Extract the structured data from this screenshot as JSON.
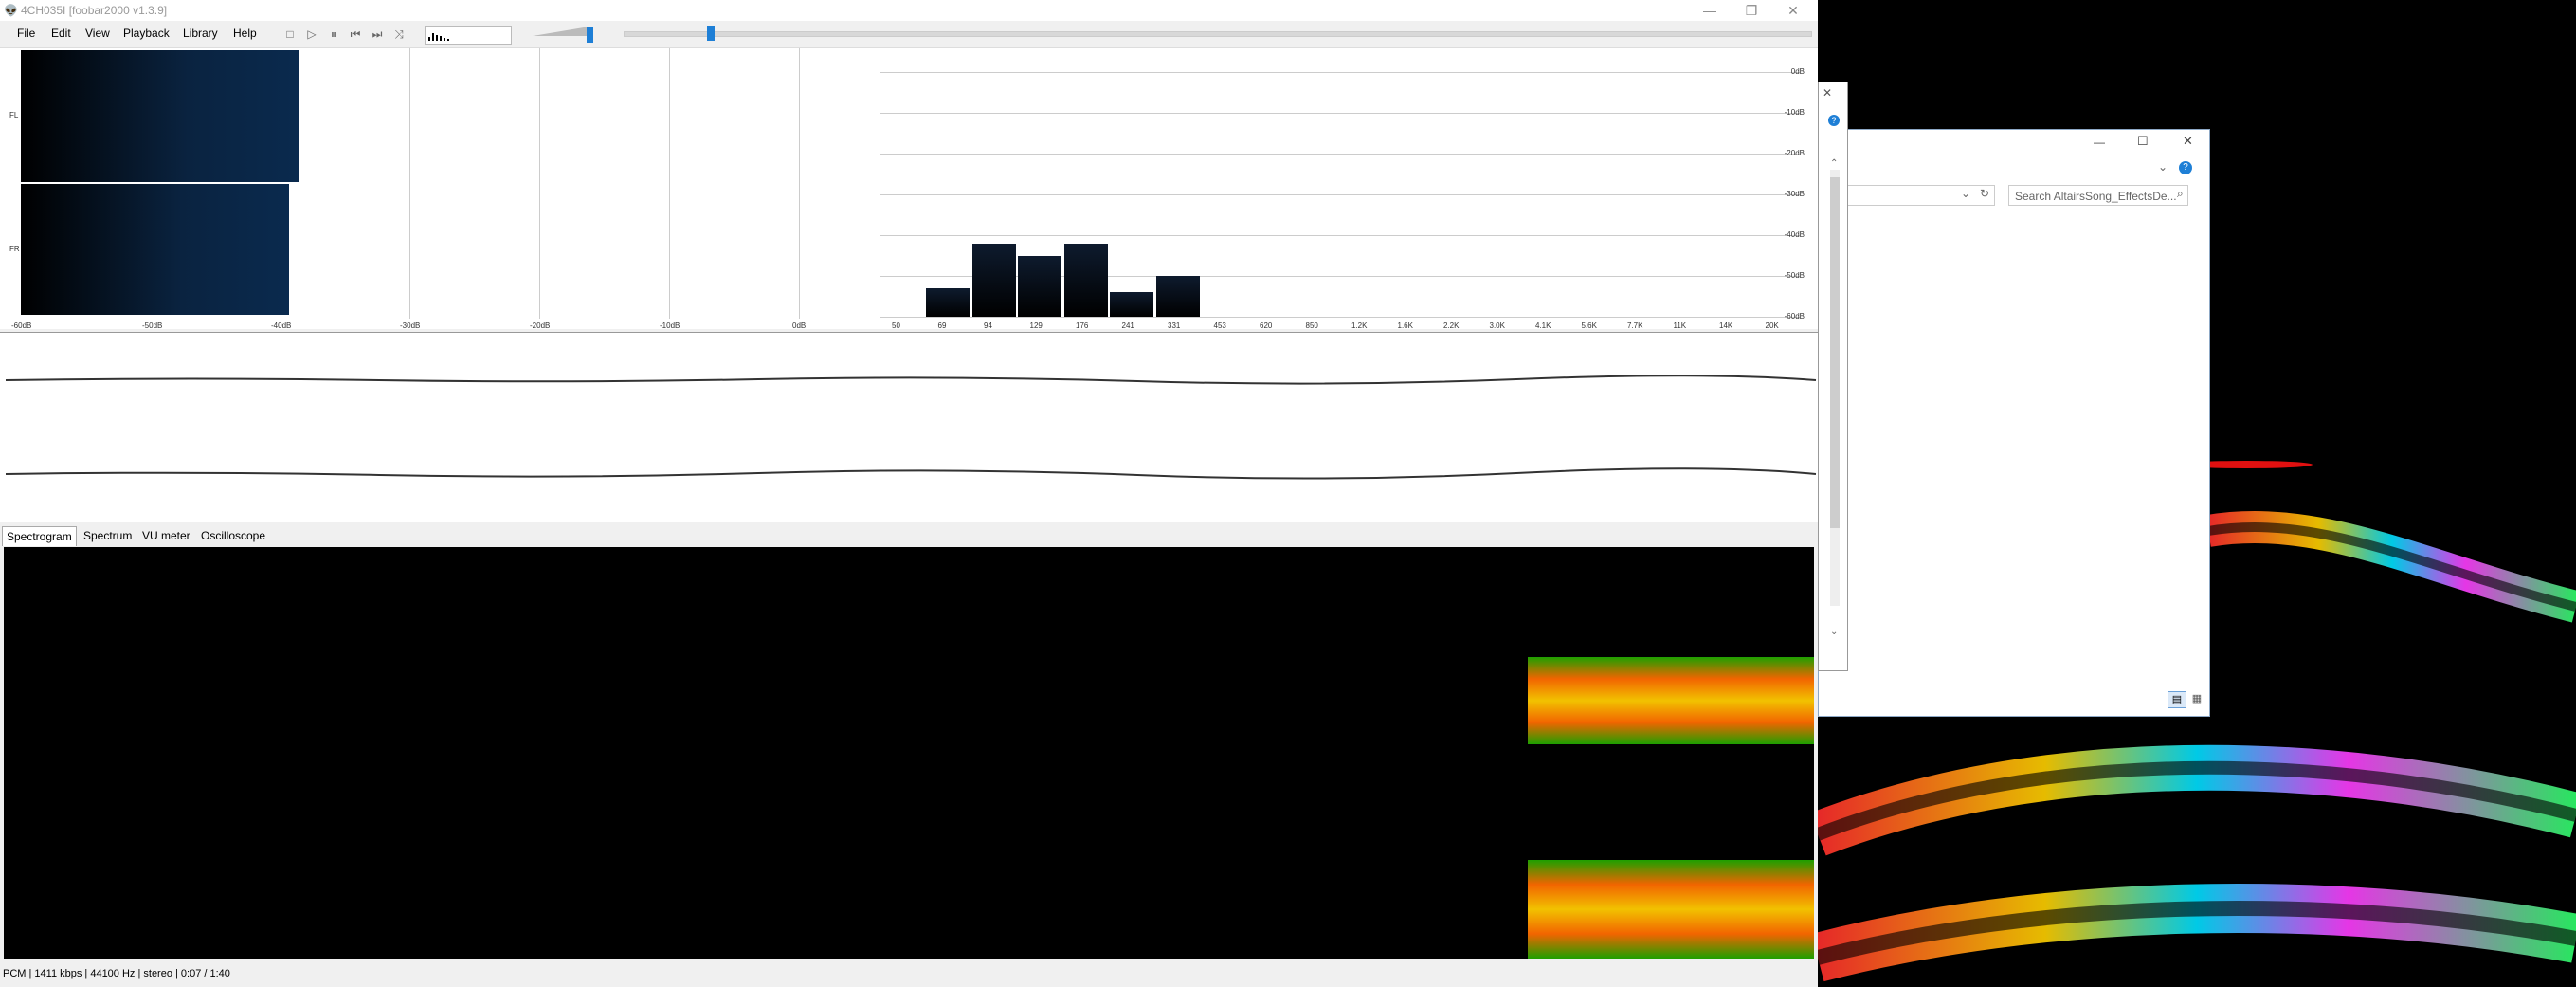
{
  "window": {
    "title": "4CH035I  [foobar2000 v1.3.9]",
    "minimize": "—",
    "restore": "❐",
    "close": "✕"
  },
  "menu": [
    "File",
    "Edit",
    "View",
    "Playback",
    "Library",
    "Help"
  ],
  "toolbar": {
    "stop": "□",
    "play": "▷",
    "pause": "⏸",
    "previous": "⏮",
    "next": "⏭",
    "random": "⤨"
  },
  "volume_level": 0.95,
  "seek_position": 0.07,
  "vu": {
    "channels": [
      "FL",
      "FR"
    ],
    "levels_db": [
      -40,
      -43
    ],
    "ticks": [
      "-60dB",
      "-50dB",
      "-40dB",
      "-30dB",
      "-20dB",
      "-10dB",
      "0dB"
    ]
  },
  "spectrum": {
    "y_ticks": [
      "0dB",
      "-10dB",
      "-20dB",
      "-30dB",
      "-40dB",
      "-50dB",
      "-60dB"
    ],
    "x_ticks": [
      "50",
      "69",
      "94",
      "129",
      "176",
      "241",
      "331",
      "453",
      "620",
      "850",
      "1.2K",
      "1.6K",
      "2.2K",
      "3.0K",
      "4.1K",
      "5.6K",
      "7.7K",
      "11K",
      "14K",
      "20K"
    ],
    "bars": [
      {
        "x": "50",
        "level": -53
      },
      {
        "x": "69",
        "level": -42
      },
      {
        "x": "94",
        "level": -45
      },
      {
        "x": "129",
        "level": -42
      },
      {
        "x": "176",
        "level": -54
      },
      {
        "x": "241",
        "level": -50
      }
    ]
  },
  "tabs": [
    "Spectrogram",
    "Spectrum",
    "VU meter",
    "Oscilloscope"
  ],
  "status": "PCM | 1411 kbps | 44100 Hz | stereo | 0:07 / 1:40",
  "explorer": {
    "search_placeholder": "Search AltairsSong_EffectsDe...",
    "minimize": "—",
    "maximize": "☐",
    "close": "✕",
    "help": "?",
    "refresh": "↻",
    "dropdown": "⌄",
    "search_icon": "⌕",
    "view_details": "▤",
    "view_large": "▦"
  },
  "narrow": {
    "close": "✕",
    "help": "?",
    "scroll_up": "⌃",
    "scroll_down": "⌄"
  },
  "colors": {
    "accent": "#1e7fd6",
    "vu_bar": "#0a2a4e",
    "spectro_hot": "#ff6a00",
    "spectro_cool": "#1fa800"
  }
}
